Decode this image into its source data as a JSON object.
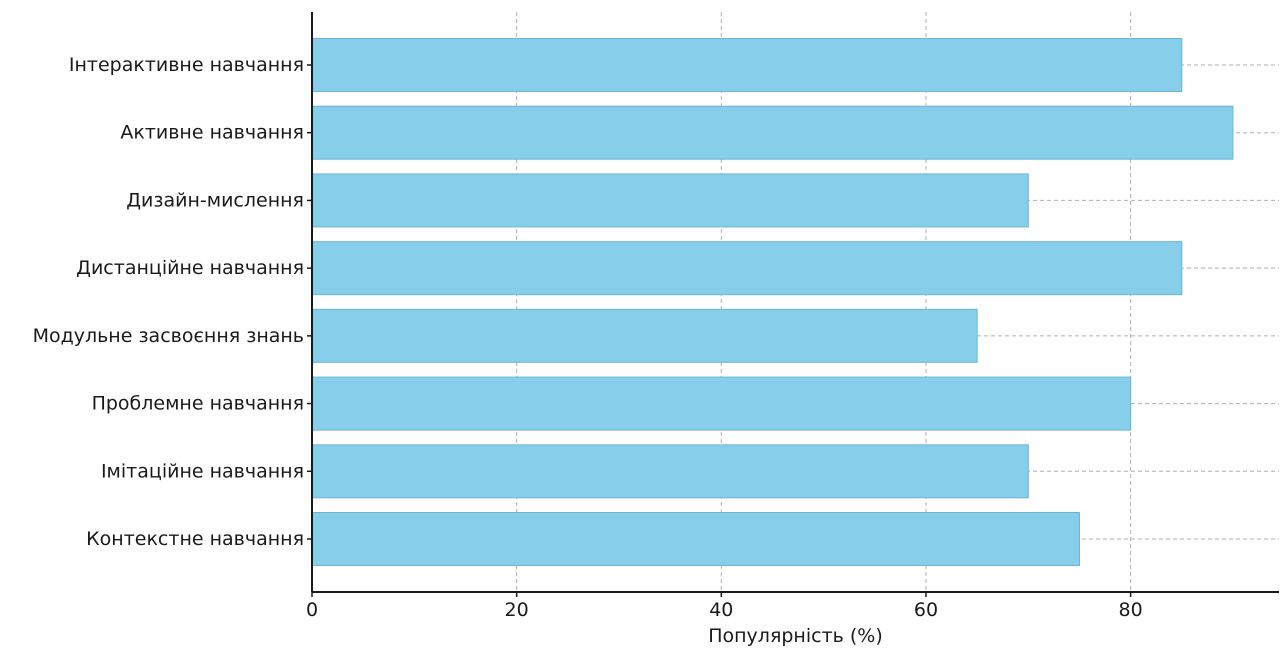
{
  "chart_data": {
    "type": "bar",
    "orientation": "horizontal",
    "categories": [
      "Інтерактивне навчання",
      "Активне навчання",
      "Дизайн-мислення",
      "Дистанційне навчання",
      "Модульне засвоєння знань",
      "Проблемне навчання",
      "Імітаційне навчання",
      "Контекстне навчання"
    ],
    "values": [
      85,
      90,
      70,
      85,
      65,
      80,
      70,
      75
    ],
    "xlabel": "Популярність (%)",
    "ylabel": "",
    "xlim": [
      0,
      94.5
    ],
    "xticks": [
      0,
      20,
      40,
      60,
      80
    ],
    "xtick_labels": [
      "0",
      "20",
      "40",
      "60",
      "80"
    ],
    "grid": true,
    "grid_style": "dashed",
    "bar_color": "#87ceeb",
    "bar_edge_color": "#6bb6d6",
    "axis_color": "#1a1a1a",
    "grid_color": "#b0b0b0"
  }
}
